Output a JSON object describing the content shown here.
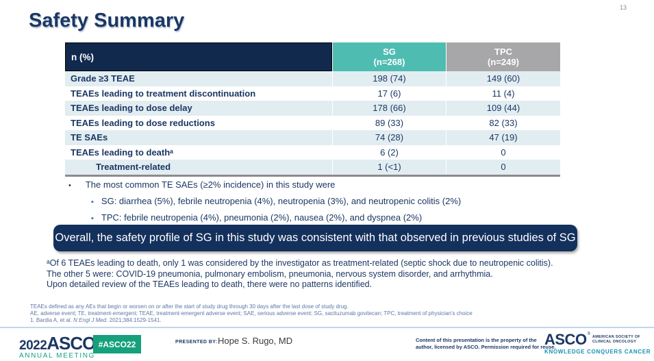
{
  "slide": {
    "page_number": "13",
    "title": "Safety Summary"
  },
  "table": {
    "header": {
      "label": "n (%)",
      "columns": [
        {
          "name": "SG",
          "n": "(n=268)"
        },
        {
          "name": "TPC",
          "n": "(n=249)"
        }
      ]
    },
    "rows": [
      {
        "label": "Grade ≥3 TEAE",
        "sg": "198 (74)",
        "tpc": "149 (60)",
        "indent": false
      },
      {
        "label": "TEAEs leading to treatment discontinuation",
        "sg": "17 (6)",
        "tpc": "11 (4)",
        "indent": false
      },
      {
        "label": "TEAEs leading to dose delay",
        "sg": "178 (66)",
        "tpc": "109 (44)",
        "indent": false
      },
      {
        "label": "TEAEs leading to dose reductions",
        "sg": "89 (33)",
        "tpc": "82 (33)",
        "indent": false
      },
      {
        "label": "TE SAEs",
        "sg": "74 (28)",
        "tpc": "47 (19)",
        "indent": false
      },
      {
        "label": "TEAEs leading to deathᵃ",
        "sg": "6 (2)",
        "tpc": "0",
        "indent": false
      },
      {
        "label": "Treatment-related",
        "sg": "1 (<1)",
        "tpc": "0",
        "indent": true
      }
    ]
  },
  "bullets": {
    "main": "The most common TE SAEs (≥2% incidence) in this study were",
    "sub": [
      "SG: diarrhea (5%), febrile neutropenia (4%), neutropenia (3%), and neutropenic colitis (2%)",
      "TPC: febrile neutropenia (4%), pneumonia (2%), nausea (2%), and dyspnea (2%)"
    ]
  },
  "banner": {
    "text": "Overall, the safety profile of SG in this study was consistent with that observed in previous studies of SG"
  },
  "footnotes": [
    "ᵃOf 6 TEAEs leading to death, only 1 was considered by the investigator as treatment-related (septic shock due to neutropenic colitis).",
    "The other 5 were: COVID-19 pneumonia, pulmonary embolism, pneumonia, nervous system disorder, and arrhythmia.",
    "Upon detailed review of the TEAEs leading to death, there were no patterns identified."
  ],
  "fine_print": {
    "line1": "TEAEs defined as any AEs that begin or worsen on or after the start of study drug through 30 days after the last dose of study drug.",
    "line2": "AE, adverse event; TE, treatment-emergent; TEAE, treatment-emergent adverse event; SAE, serious adverse event; SG, sacituzumab govitecan; TPC, treatment of physician's choice",
    "ref_prefix": "1. Bardia A, et al. ",
    "ref_journal": "N Engl J Med",
    "ref_suffix": ". 2021;384:1529-1541."
  },
  "footer": {
    "meeting_logo": {
      "year": "2022",
      "org": "ASCO",
      "reg": "®",
      "sub": "ANNUAL MEETING"
    },
    "hashtag": "#ASCO22",
    "presented_by_label": "PRESENTED BY:",
    "presenter": "Hope S. Rugo, MD",
    "copyright_line1": "Content of this presentation is the property of the",
    "copyright_line2": "author, licensed by ASCO. Permission required for reuse.",
    "asco_logo": {
      "org": "ASCO",
      "reg": "®",
      "society_line1": "AMERICAN SOCIETY OF",
      "society_line2": "CLINICAL ONCOLOGY",
      "tagline": "KNOWLEDGE CONQUERS CANCER"
    }
  },
  "colors": {
    "navy": "#1B3764",
    "table_header_navy": "#12294E",
    "teal_header": "#4FBCB1",
    "gray_header": "#A7A7A9",
    "row_alt": "#E2EDF1",
    "banner_navy": "#14305C",
    "green": "#16A07C",
    "tagline_teal": "#1592B4"
  }
}
